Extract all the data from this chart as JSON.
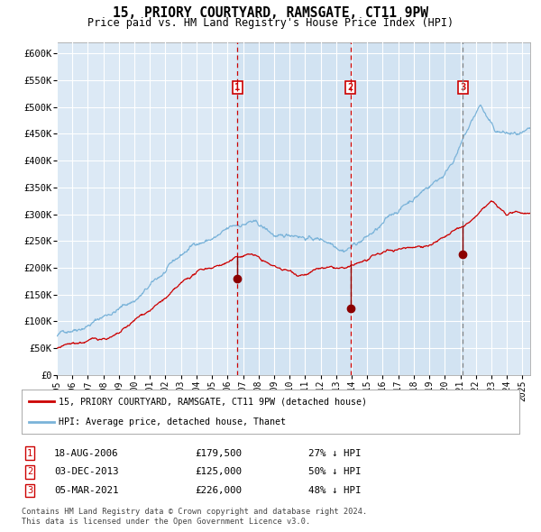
{
  "title": "15, PRIORY COURTYARD, RAMSGATE, CT11 9PW",
  "subtitle": "Price paid vs. HM Land Registry's House Price Index (HPI)",
  "background_color": "#ffffff",
  "plot_bg_color": "#dce9f5",
  "grid_color": "#ffffff",
  "hpi_line_color": "#7ab3d9",
  "price_line_color": "#cc0000",
  "sale_marker_color": "#8b0000",
  "transactions": [
    {
      "date": 2006.63,
      "price": 179500,
      "label": "1"
    },
    {
      "date": 2013.92,
      "price": 125000,
      "label": "2"
    },
    {
      "date": 2021.17,
      "price": 226000,
      "label": "3"
    }
  ],
  "table_rows": [
    [
      "1",
      "18-AUG-2006",
      "£179,500",
      "27% ↓ HPI"
    ],
    [
      "2",
      "03-DEC-2013",
      "£125,000",
      "50% ↓ HPI"
    ],
    [
      "3",
      "05-MAR-2021",
      "£226,000",
      "48% ↓ HPI"
    ]
  ],
  "footer_text": "Contains HM Land Registry data © Crown copyright and database right 2024.\nThis data is licensed under the Open Government Licence v3.0.",
  "legend_entries": [
    "15, PRIORY COURTYARD, RAMSGATE, CT11 9PW (detached house)",
    "HPI: Average price, detached house, Thanet"
  ],
  "ylim": [
    0,
    620000
  ],
  "xlim_start": 1995.0,
  "xlim_end": 2025.5,
  "yticks": [
    0,
    50000,
    100000,
    150000,
    200000,
    250000,
    300000,
    350000,
    400000,
    450000,
    500000,
    550000,
    600000
  ],
  "ytick_labels": [
    "£0",
    "£50K",
    "£100K",
    "£150K",
    "£200K",
    "£250K",
    "£300K",
    "£350K",
    "£400K",
    "£450K",
    "£500K",
    "£550K",
    "£600K"
  ],
  "xticks": [
    1995,
    1996,
    1997,
    1998,
    1999,
    2000,
    2001,
    2002,
    2003,
    2004,
    2005,
    2006,
    2007,
    2008,
    2009,
    2010,
    2011,
    2012,
    2013,
    2014,
    2015,
    2016,
    2017,
    2018,
    2019,
    2020,
    2021,
    2022,
    2023,
    2024,
    2025
  ]
}
